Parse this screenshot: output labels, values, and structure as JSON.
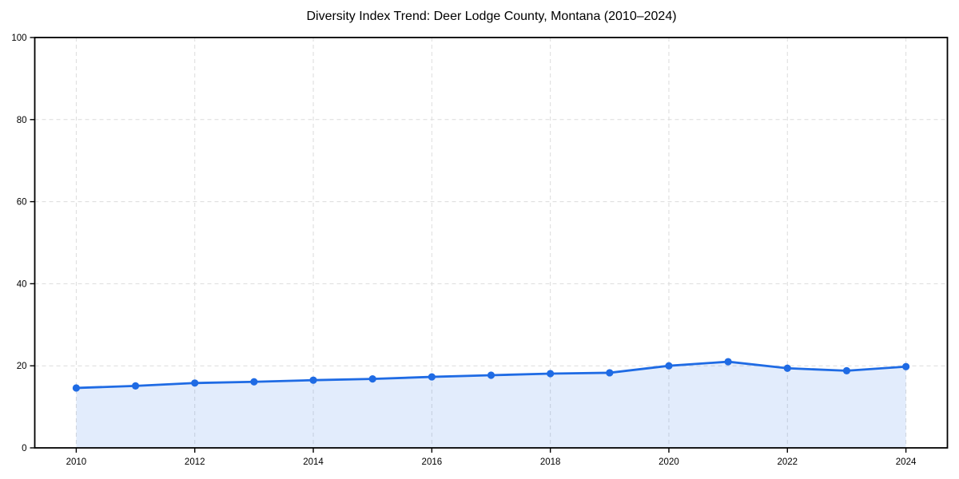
{
  "chart_data": {
    "type": "area",
    "title": "Diversity Index Trend: Deer Lodge County, Montana (2010–2024)",
    "series_name": "Diversity Index",
    "x": [
      2010,
      2011,
      2012,
      2013,
      2014,
      2015,
      2016,
      2017,
      2018,
      2019,
      2020,
      2021,
      2022,
      2023,
      2024
    ],
    "values": [
      14.6,
      15.1,
      15.8,
      16.1,
      16.5,
      16.8,
      17.3,
      17.7,
      18.1,
      18.3,
      20.0,
      21.0,
      19.4,
      18.8,
      19.8
    ],
    "xlabel": "",
    "ylabel": "",
    "xlim": [
      2009.3,
      2024.7
    ],
    "ylim": [
      0,
      100
    ],
    "xticks": [
      2010,
      2012,
      2014,
      2016,
      2018,
      2020,
      2022,
      2024
    ],
    "yticks": [
      0,
      20,
      40,
      60,
      80,
      100
    ],
    "grid": "dashed-both-axes",
    "legend_position": "none",
    "marker": "circle",
    "colors": {
      "line": "#1f6be4",
      "marker": "#1f6be4",
      "fill": "#1f6be4",
      "fill_opacity": 0.13,
      "grid": "#dcdcdc",
      "spine": "#000000",
      "text": "#000000",
      "background": "#ffffff"
    }
  }
}
